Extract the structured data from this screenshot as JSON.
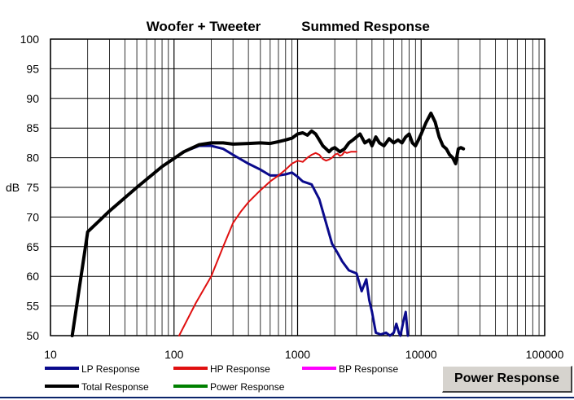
{
  "window": {
    "button_label": "Power Response"
  },
  "chart_data": {
    "type": "line",
    "title_left": "Woofer + Tweeter",
    "title_right": "Summed Response",
    "ylabel": "dB",
    "xscale": "log",
    "xlim": [
      10,
      100000
    ],
    "ylim": [
      50,
      100
    ],
    "yticks": [
      "100",
      "95",
      "90",
      "85",
      "80",
      "75",
      "70",
      "65",
      "60",
      "55",
      "50"
    ],
    "xticks": [
      "10",
      "100",
      "1000",
      "10000",
      "100000"
    ],
    "grid": true,
    "legend_position": "bottom",
    "legend": [
      {
        "name": "LP Response",
        "color": "#0a0a8c"
      },
      {
        "name": "HP Response",
        "color": "#e01010"
      },
      {
        "name": "BP Response",
        "color": "#ff00ff"
      },
      {
        "name": "Total Response",
        "color": "#000000"
      },
      {
        "name": "Power Response",
        "color": "#008000"
      }
    ],
    "series": [
      {
        "name": "LP Response",
        "color": "#0a0a8c",
        "width": 3,
        "x": [
          15,
          20,
          30,
          50,
          80,
          120,
          160,
          200,
          250,
          300,
          400,
          500,
          600,
          700,
          800,
          900,
          1000,
          1100,
          1300,
          1500,
          1700,
          1900,
          2100,
          2300,
          2600,
          3000,
          3300,
          3600,
          3800,
          4000,
          4300,
          4700,
          5200,
          5600,
          6000,
          6300,
          6600,
          6800,
          7200,
          7500,
          7800
        ],
        "y": [
          50,
          67.5,
          71,
          75,
          78.5,
          81,
          82,
          82,
          81.5,
          80.5,
          79,
          78,
          77,
          77,
          77.2,
          77.5,
          76.8,
          76,
          75.5,
          73,
          69,
          65.5,
          64,
          62.5,
          61,
          60.5,
          57.5,
          59.5,
          56,
          54,
          50.5,
          50.2,
          50.5,
          50,
          50.5,
          52,
          50.5,
          50,
          52.5,
          54,
          50
        ]
      },
      {
        "name": "HP Response",
        "color": "#e01010",
        "width": 2,
        "x": [
          110,
          150,
          200,
          250,
          300,
          350,
          400,
          500,
          600,
          700,
          800,
          900,
          1000,
          1100,
          1200,
          1300,
          1400,
          1500,
          1600,
          1700,
          1800,
          1900,
          2000,
          2100,
          2200,
          2300,
          2400,
          2500,
          2700,
          3000
        ],
        "y": [
          50,
          55.5,
          60,
          65,
          69,
          71,
          72.5,
          74.5,
          76,
          77,
          78,
          79,
          79.5,
          79.3,
          80,
          80.5,
          80.8,
          80.5,
          79.8,
          79.5,
          79.7,
          80,
          80.5,
          80.7,
          80.3,
          80.5,
          81,
          80.8,
          81,
          81
        ]
      },
      {
        "name": "Total Response",
        "color": "#000000",
        "width": 4,
        "x": [
          15,
          20,
          30,
          50,
          80,
          120,
          160,
          200,
          250,
          300,
          400,
          500,
          600,
          700,
          800,
          900,
          1000,
          1100,
          1200,
          1300,
          1400,
          1500,
          1600,
          1700,
          1800,
          1900,
          2000,
          2200,
          2400,
          2600,
          2800,
          3000,
          3200,
          3500,
          3800,
          4000,
          4300,
          4600,
          5000,
          5500,
          6000,
          6500,
          7000,
          7500,
          8000,
          8500,
          9000,
          9500,
          10000,
          11000,
          12000,
          13000,
          14000,
          15000,
          16000,
          17000,
          18000,
          19000,
          20000,
          21000,
          22000
        ],
        "y": [
          50,
          67.5,
          71,
          75,
          78.5,
          81,
          82.2,
          82.5,
          82.5,
          82.3,
          82.4,
          82.5,
          82.4,
          82.7,
          83,
          83.3,
          84,
          84.2,
          83.8,
          84.5,
          84,
          83,
          82,
          81.5,
          81,
          81.5,
          81.7,
          81,
          81.5,
          82.5,
          83,
          83.5,
          84,
          82.5,
          83,
          82,
          83.5,
          82.5,
          82,
          83.2,
          82.5,
          83,
          82.5,
          83.5,
          84,
          82.5,
          82,
          83,
          84,
          86,
          87.5,
          86,
          83.5,
          82,
          81.5,
          80.5,
          80,
          79,
          81.5,
          81.7,
          81.5
        ]
      }
    ]
  }
}
